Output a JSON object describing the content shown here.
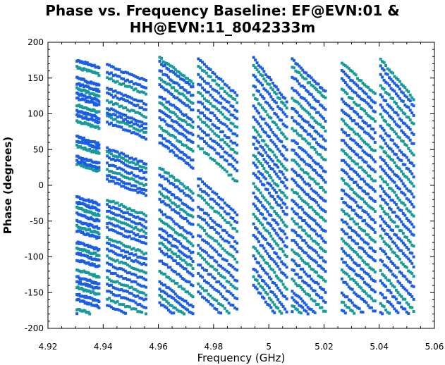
{
  "chart_data": {
    "type": "scatter",
    "title_line1": "Phase vs. Frequency Baseline: EF@EVN:01 &",
    "title_line2": "HH@EVN:11_8042333m",
    "xlabel": "Frequency (GHz)",
    "ylabel": "Phase (degrees)",
    "xlim": [
      4.92,
      5.06
    ],
    "ylim": [
      -200,
      200
    ],
    "x_ticks": [
      4.92,
      4.94,
      4.96,
      4.98,
      5.0,
      5.02,
      5.04,
      5.06
    ],
    "x_tick_labels": [
      "4.92",
      "4.94",
      "4.96",
      "4.98",
      "5",
      "5.02",
      "5.04",
      "5.06"
    ],
    "y_ticks": [
      -200,
      -150,
      -100,
      -50,
      0,
      50,
      100,
      150,
      200
    ],
    "y_tick_labels": [
      "-200",
      "-150",
      "-100",
      "-50",
      "0",
      "50",
      "100",
      "150",
      "200"
    ],
    "grid": false,
    "colors": {
      "blue": "#1a5ee8",
      "teal": "#169a9a"
    },
    "bands": [
      {
        "x_start": 4.9305,
        "x_end": 4.9385,
        "slope": 10,
        "tracks": [
          -180,
          -173,
          -160,
          -152,
          -143,
          -135,
          -128,
          -118,
          -104,
          -95,
          -88,
          -80,
          -64,
          -57,
          -50,
          -40,
          -32,
          -24,
          -16,
          30,
          34,
          40,
          55,
          62,
          68,
          90,
          98,
          104,
          112,
          122,
          128,
          135,
          142,
          150,
          165,
          175
        ]
      },
      {
        "x_start": 4.9415,
        "x_end": 4.9555,
        "slope": 22,
        "tracks": [
          -168,
          -158,
          -148,
          -138,
          -130,
          -120,
          -110,
          -100,
          -90,
          -82,
          -74,
          -60,
          -52,
          -44,
          -36,
          -28,
          -20,
          8,
          14,
          22,
          30,
          40,
          46,
          52,
          88,
          96,
          102,
          108,
          118,
          128,
          136,
          150,
          158,
          168
        ]
      },
      {
        "x_start": 4.9605,
        "x_end": 4.9725,
        "slope": 35,
        "tracks": [
          -165,
          -155,
          -145,
          -135,
          -120,
          -105,
          -90,
          -80,
          -70,
          -60,
          -48,
          -36,
          -20,
          -10,
          0,
          15,
          25,
          60,
          70,
          82,
          94,
          105,
          115,
          125,
          140,
          150,
          160,
          172,
          178
        ]
      },
      {
        "x_start": 4.9745,
        "x_end": 4.9885,
        "slope": 50,
        "tracks": [
          -150,
          -138,
          -124,
          -110,
          -96,
          -84,
          -70,
          -56,
          -42,
          -30,
          -14,
          -2,
          10,
          55,
          70,
          82,
          94,
          105,
          118,
          130,
          142,
          154,
          166,
          176
        ]
      },
      {
        "x_start": 4.9945,
        "x_end": 5.0065,
        "slope": 60,
        "tracks": [
          -140,
          -128,
          -116,
          -100,
          -85,
          -70,
          -55,
          -40,
          -26,
          -12,
          2,
          18,
          30,
          42,
          56,
          68,
          80,
          95,
          110,
          125,
          140,
          155,
          168,
          178
        ]
      },
      {
        "x_start": 5.0085,
        "x_end": 5.0205,
        "slope": 45,
        "tracks": [
          -178,
          -168,
          -158,
          -148,
          -132,
          -118,
          -104,
          -90,
          -76,
          -62,
          -48,
          -34,
          -20,
          -6,
          8,
          22,
          36,
          50,
          64,
          80,
          94,
          108,
          122,
          136,
          152,
          166,
          176
        ]
      },
      {
        "x_start": 5.0265,
        "x_end": 5.0385,
        "slope": 45,
        "tracks": [
          -175,
          -162,
          -150,
          -132,
          -118,
          -104,
          -90,
          -76,
          -62,
          -48,
          -34,
          -20,
          -6,
          8,
          22,
          36,
          50,
          64,
          78,
          92,
          106,
          120,
          134,
          148,
          160,
          172
        ]
      },
      {
        "x_start": 5.0405,
        "x_end": 5.0525,
        "slope": 55,
        "tracks": [
          -178,
          -165,
          -150,
          -134,
          -120,
          -104,
          -88,
          -72,
          -58,
          -44,
          -30,
          -16,
          -2,
          12,
          26,
          40,
          54,
          68,
          82,
          98,
          112,
          126,
          140,
          154,
          166,
          176
        ]
      }
    ]
  }
}
